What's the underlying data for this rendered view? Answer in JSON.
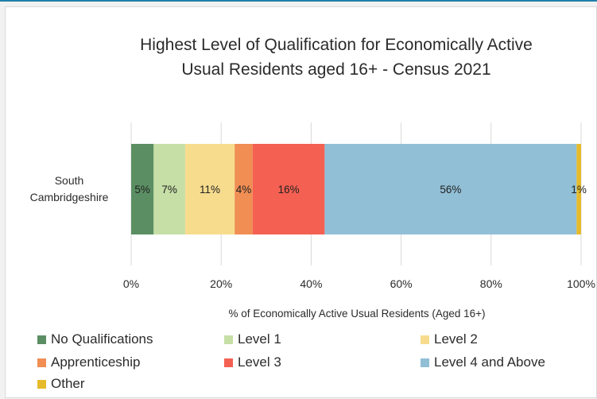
{
  "chart_data": {
    "type": "bar",
    "orientation": "horizontal",
    "stacked": true,
    "title_lines": [
      "Highest Level of Qualification for Economically Active",
      "Usual Residents aged 16+ - Census 2021"
    ],
    "category_lines": [
      "South",
      "Cambridgeshire"
    ],
    "xlabel": "% of Economically Active Usual Residents (Aged 16+)",
    "xlim": [
      0,
      100
    ],
    "x_ticks": [
      "0%",
      "20%",
      "40%",
      "60%",
      "80%",
      "100%"
    ],
    "grid": "vertical",
    "legend_position": "bottom",
    "series": [
      {
        "name": "No Qualifications",
        "value": 5,
        "label": "5%",
        "color": "#5b8f63"
      },
      {
        "name": "Level 1",
        "value": 7,
        "label": "7%",
        "color": "#c5dfa7"
      },
      {
        "name": "Level 2",
        "value": 11,
        "label": "11%",
        "color": "#f7dc8e"
      },
      {
        "name": "Apprenticeship",
        "value": 4,
        "label": "4%",
        "color": "#f08e54"
      },
      {
        "name": "Level 3",
        "value": 16,
        "label": "16%",
        "color": "#f46052"
      },
      {
        "name": "Level 4 and Above",
        "value": 56,
        "label": "56%",
        "color": "#91bfd6"
      },
      {
        "name": "Other",
        "value": 1,
        "label": "1%",
        "color": "#e6bb2b"
      }
    ]
  }
}
